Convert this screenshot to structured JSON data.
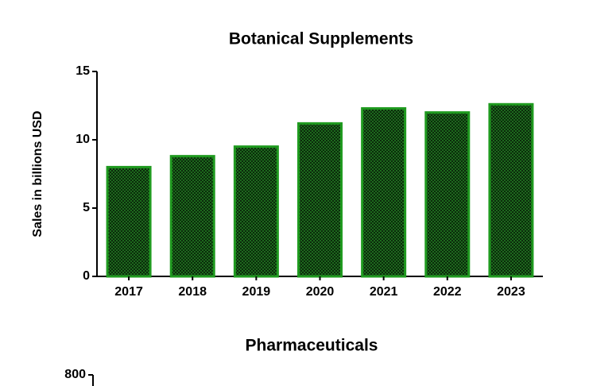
{
  "chart_data": [
    {
      "type": "bar",
      "title": "Botanical Supplements",
      "ylabel": "Sales in billions USD",
      "categories": [
        "2017",
        "2018",
        "2019",
        "2020",
        "2021",
        "2022",
        "2023"
      ],
      "values": [
        8.0,
        8.8,
        9.5,
        11.2,
        12.3,
        12.0,
        12.6
      ],
      "color": "#1f9a1f",
      "ylim": [
        0,
        15
      ],
      "yticks": [
        0,
        5,
        10,
        15
      ]
    },
    {
      "type": "bar",
      "title": "Pharmaceuticals",
      "yticks": [
        800
      ]
    }
  ]
}
